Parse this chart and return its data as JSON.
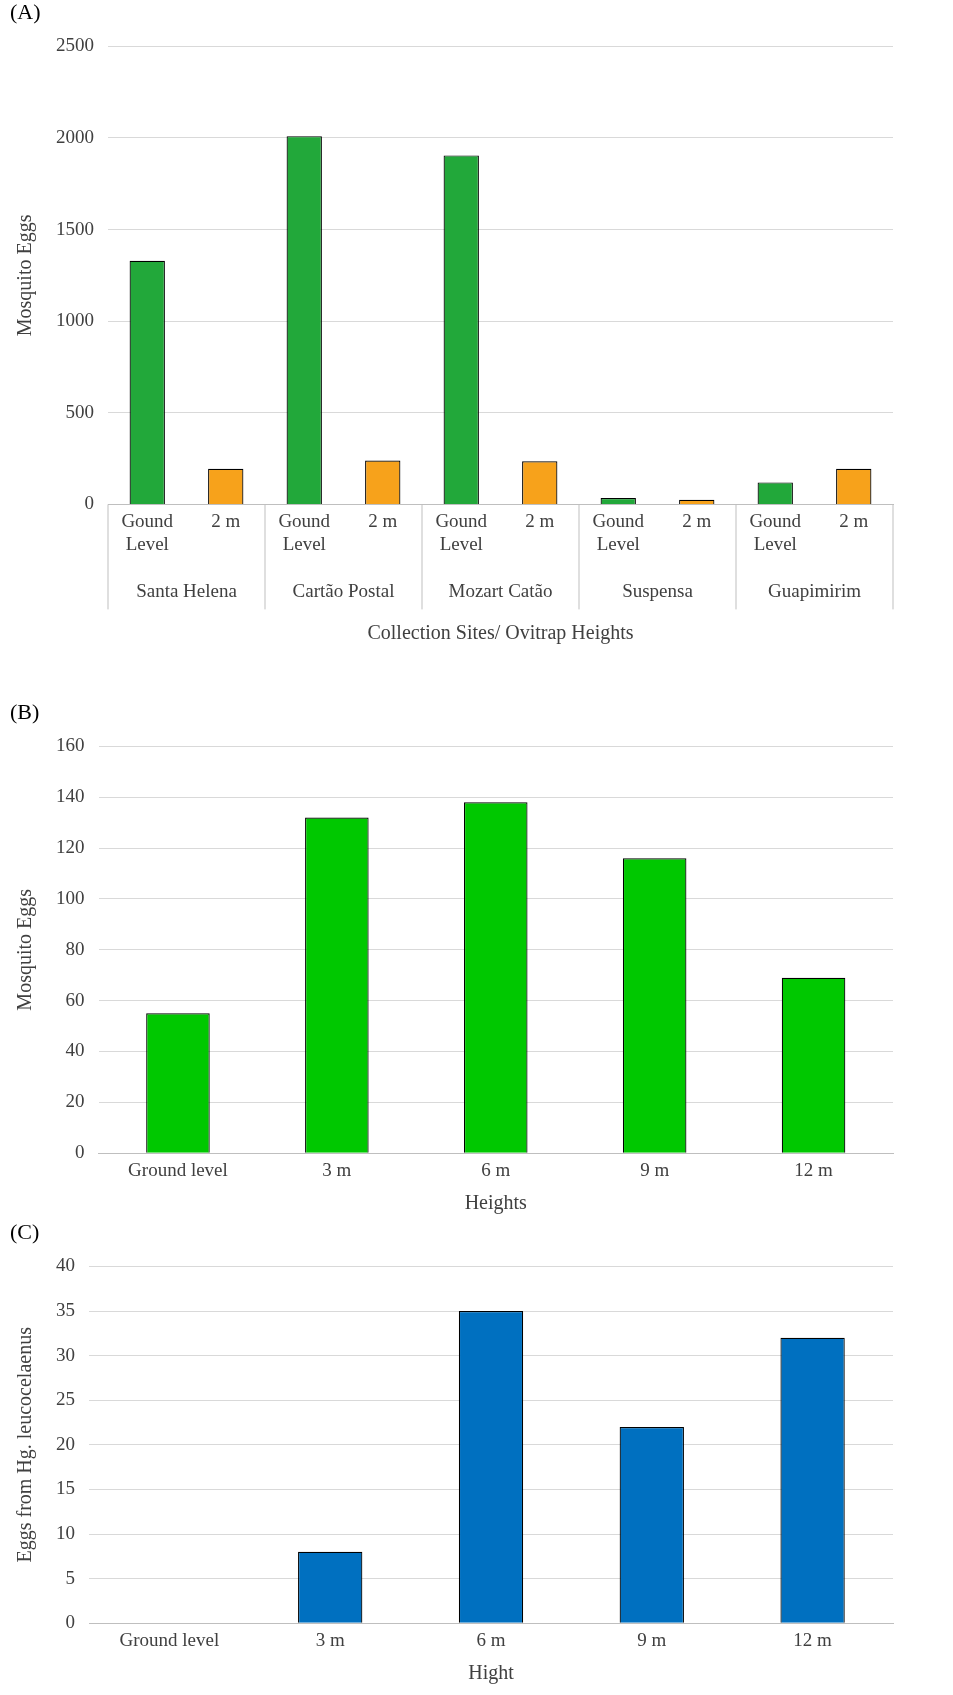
{
  "chart_data": [
    {
      "type": "bar",
      "title": "(A)",
      "categories": [
        "Gound Level",
        "2 m",
        "Gound Level",
        "2 m",
        "Gound Level",
        "2 m",
        "Gound Level",
        "2 m",
        "Gound Level",
        "2 m"
      ],
      "values": [
        1330,
        195,
        2010,
        240,
        1905,
        235,
        35,
        25,
        120,
        195
      ],
      "colors": [
        "#22a83a",
        "#f7a21b",
        "#22a83a",
        "#f7a21b",
        "#22a83a",
        "#f7a21b",
        "#22a83a",
        "#f7a21b",
        "#22a83a",
        "#f7a21b"
      ],
      "xlabel": "Collection Sites/ Ovitrap Heights",
      "ylabel": "Mosquito Eggs",
      "ylim": [
        0,
        2500
      ],
      "yticks": [
        0,
        500,
        1000,
        1500,
        2000,
        2500
      ],
      "grid": "y",
      "annotations": [
        "Santa Helena",
        "Cartão Postal",
        "Mozart Catão",
        "Suspensa",
        "Guapimirim"
      ]
    },
    {
      "type": "bar",
      "title": "(B)",
      "categories": [
        "Ground level",
        "3 m",
        "6 m",
        "9 m",
        "12 m"
      ],
      "values": [
        55,
        132,
        138,
        116,
        69
      ],
      "color": "#00c800",
      "xlabel": "Heights",
      "ylabel": "Mosquito Eggs",
      "ylim": [
        0,
        160
      ],
      "yticks": [
        0,
        20,
        40,
        60,
        80,
        100,
        120,
        140,
        160
      ],
      "grid": "y"
    },
    {
      "type": "bar",
      "title": "(C)",
      "categories": [
        "Ground level",
        "3 m",
        "6 m",
        "9 m",
        "12 m"
      ],
      "values": [
        0,
        8,
        35,
        22,
        32
      ],
      "color": "#0070c0",
      "xlabel": "Hight",
      "ylabel": "Eggs from Hg. leucocelaenus",
      "ylim": [
        0,
        40
      ],
      "yticks": [
        0,
        5,
        10,
        15,
        20,
        25,
        30,
        35,
        40
      ],
      "grid": "y"
    }
  ]
}
